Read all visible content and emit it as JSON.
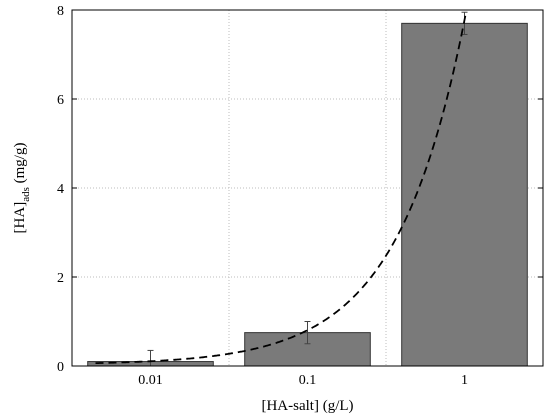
{
  "chart_data": {
    "type": "bar",
    "categories": [
      "0.01",
      "0.1",
      "1"
    ],
    "values": [
      0.1,
      0.75,
      7.7
    ],
    "error_bars": [
      0.25,
      0.25,
      0.25
    ],
    "xlabel": "[HA-salt] (g/L)",
    "ylabel_main": "[HA]",
    "ylabel_sub": "ads",
    "ylabel_unit": " (mg/g)",
    "ylim": [
      0,
      8
    ],
    "yticks": [
      0,
      2,
      4,
      6,
      8
    ],
    "grid": true,
    "fit_curve": {
      "style": "dashed",
      "intercept": 0.03,
      "slope": 0.0775
    },
    "colors": {
      "bar_fill": "#7a7a7a",
      "bar_edge": "#333333",
      "grid": "#bdbdbd",
      "curve": "#000000"
    }
  }
}
